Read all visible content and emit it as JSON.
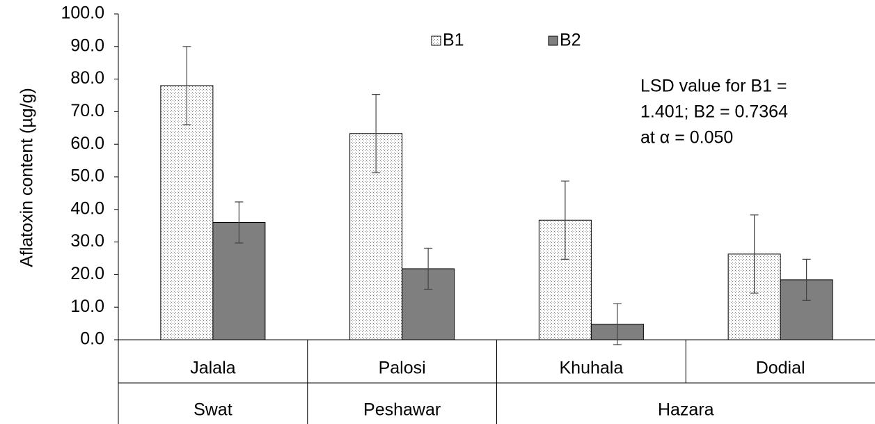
{
  "chart_data": {
    "type": "bar",
    "y_label": "Aflatoxin content (µg/g)",
    "categories": [
      "Jalala",
      "Palosi",
      "Khuhala",
      "Dodial"
    ],
    "groups": [
      {
        "name": "Swat",
        "span": 1
      },
      {
        "name": "Peshawar",
        "span": 1
      },
      {
        "name": "Hazara",
        "span": 2
      }
    ],
    "series": [
      {
        "name": "B1",
        "color": "#e6e6e6",
        "pattern": "dots",
        "values": [
          78.0,
          63.3,
          36.7,
          26.3
        ],
        "errors": [
          12.0,
          12.0,
          12.0,
          12.0
        ]
      },
      {
        "name": "B2",
        "color": "#7f7f7f",
        "values": [
          36.0,
          21.8,
          4.8,
          18.4
        ],
        "errors": [
          6.3,
          6.3,
          6.3,
          6.3
        ]
      }
    ],
    "annotation": [
      "LSD value for B1 =",
      "1.401; B2 = 0.7364",
      "at α = 0.050"
    ],
    "ylim": [
      0,
      100
    ],
    "yticks": [
      {
        "value": 0,
        "label": "0.0"
      },
      {
        "value": 10,
        "label": "10.0"
      },
      {
        "value": 20,
        "label": "20.0"
      },
      {
        "value": 30,
        "label": "30.0"
      },
      {
        "value": 40,
        "label": "40.0"
      },
      {
        "value": 50,
        "label": "50.0"
      },
      {
        "value": 60,
        "label": "60.0"
      },
      {
        "value": 70,
        "label": "70.0"
      },
      {
        "value": 80,
        "label": "80.0"
      },
      {
        "value": 90,
        "label": "90.0"
      },
      {
        "value": 100,
        "label": "100.0"
      }
    ],
    "grid": false,
    "legend": "top"
  }
}
